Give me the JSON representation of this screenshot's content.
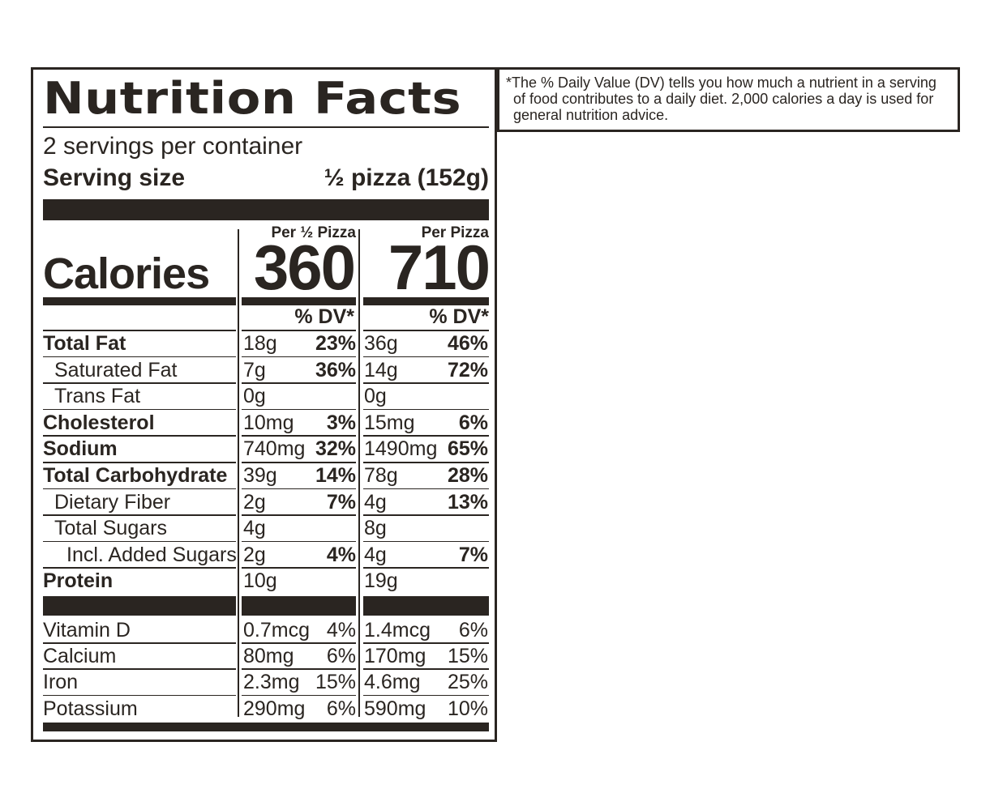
{
  "label": {
    "title": "Nutrition Facts",
    "servings_per_container": "2 servings per container",
    "serving_size_label": "Serving size",
    "serving_size_value": "½ pizza (152g)",
    "calories_label": "Calories",
    "columns": [
      {
        "header": "Per ½ Pizza",
        "calories": "360",
        "dv_header": "% DV*"
      },
      {
        "header": "Per Pizza",
        "calories": "710",
        "dv_header": "% DV*"
      }
    ],
    "nutrients": [
      {
        "name": "Total Fat",
        "style": "bold",
        "indent": 0,
        "amt1": "18g",
        "dv1": "23%",
        "amt2": "36g",
        "dv2": "46%"
      },
      {
        "name": "Saturated Fat",
        "style": "normal",
        "indent": 1,
        "amt1": "7g",
        "dv1": "36%",
        "amt2": "14g",
        "dv2": "72%"
      },
      {
        "name": "Trans Fat",
        "style": "normal",
        "indent": 1,
        "amt1": "0g",
        "dv1": "",
        "amt2": "0g",
        "dv2": ""
      },
      {
        "name": "Cholesterol",
        "style": "bold",
        "indent": 0,
        "amt1": "10mg",
        "dv1": "3%",
        "amt2": "15mg",
        "dv2": "6%"
      },
      {
        "name": "Sodium",
        "style": "bold",
        "indent": 0,
        "amt1": "740mg",
        "dv1": "32%",
        "amt2": "1490mg",
        "dv2": "65%"
      },
      {
        "name": "Total Carbohydrate",
        "style": "bold",
        "indent": 0,
        "amt1": "39g",
        "dv1": "14%",
        "amt2": "78g",
        "dv2": "28%"
      },
      {
        "name": "Dietary Fiber",
        "style": "normal",
        "indent": 1,
        "amt1": "2g",
        "dv1": "7%",
        "amt2": "4g",
        "dv2": "13%"
      },
      {
        "name": "Total Sugars",
        "style": "normal",
        "indent": 1,
        "amt1": "4g",
        "dv1": "",
        "amt2": "8g",
        "dv2": ""
      },
      {
        "name": "Incl. Added Sugars",
        "style": "normal",
        "indent": 2,
        "amt1": "2g",
        "dv1": "4%",
        "amt2": "4g",
        "dv2": "7%"
      },
      {
        "name": "Protein",
        "style": "bold",
        "indent": 0,
        "amt1": "10g",
        "dv1": "",
        "amt2": "19g",
        "dv2": ""
      }
    ],
    "vitamins": [
      {
        "name": "Vitamin D",
        "amt1": "0.7mcg",
        "dv1": "4%",
        "amt2": "1.4mcg",
        "dv2": "6%"
      },
      {
        "name": "Calcium",
        "amt1": "80mg",
        "dv1": "6%",
        "amt2": "170mg",
        "dv2": "15%"
      },
      {
        "name": "Iron",
        "amt1": "2.3mg",
        "dv1": "15%",
        "amt2": "4.6mg",
        "dv2": "25%"
      },
      {
        "name": "Potassium",
        "amt1": "290mg",
        "dv1": "6%",
        "amt2": "590mg",
        "dv2": "10%"
      }
    ]
  },
  "footnote": "*The % Daily Value (DV) tells you how much a nutrient in a serving of food contributes to a daily diet. 2,000 calories a day is used for general nutrition advice.",
  "colors": {
    "ink": "#2a2521",
    "background": "#ffffff"
  }
}
